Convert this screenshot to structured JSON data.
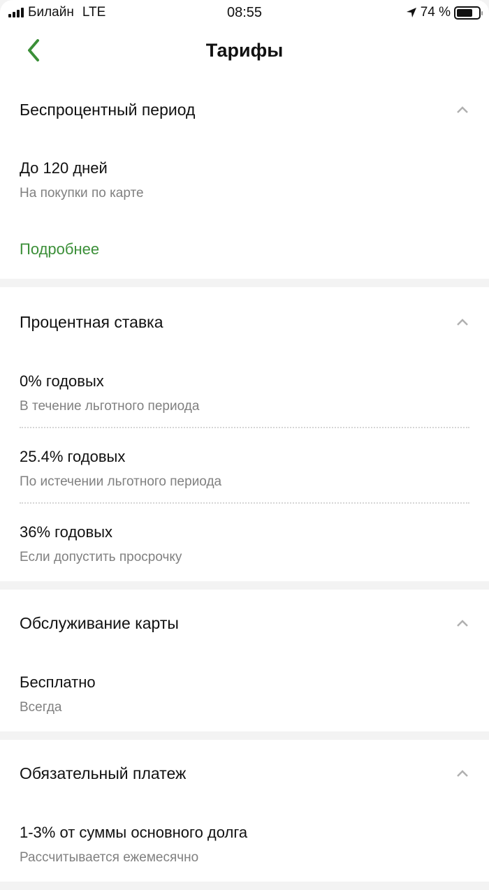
{
  "status_bar": {
    "carrier": "Билайн",
    "network": "LTE",
    "time": "08:55",
    "battery": "74 %",
    "battery_level": 0.74
  },
  "nav": {
    "title": "Тарифы"
  },
  "colors": {
    "accent": "#3b8f38",
    "secondary_text": "#808080"
  },
  "sections": [
    {
      "title": "Беспроцентный период",
      "items": [
        {
          "title": "До 120 дней",
          "subtitle": "На покупки по карте"
        }
      ],
      "link": "Подробнее"
    },
    {
      "title": "Процентная ставка",
      "items": [
        {
          "title": "0% годовых",
          "subtitle": "В течение льготного периода"
        },
        {
          "title": "25.4% годовых",
          "subtitle": "По истечении льготного периода"
        },
        {
          "title": "36% годовых",
          "subtitle": "Если допустить просрочку"
        }
      ]
    },
    {
      "title": "Обслуживание карты",
      "items": [
        {
          "title": "Бесплатно",
          "subtitle": "Всегда"
        }
      ]
    },
    {
      "title": "Обязательный платеж",
      "items": [
        {
          "title": "1-3% от суммы основного долга",
          "subtitle": "Рассчитывается ежемесячно"
        }
      ]
    }
  ]
}
